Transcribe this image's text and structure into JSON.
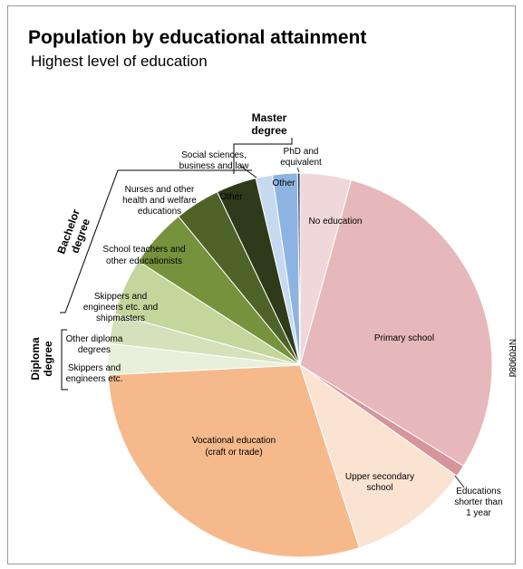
{
  "chart_data": {
    "type": "pie",
    "title": "Population by educational attainment",
    "subtitle": "Highest level of education",
    "code": "NR0908d",
    "start_angle_deg": 0,
    "direction": "clockwise",
    "slices": [
      {
        "label": "No education",
        "value": 4.3,
        "color": "#f0d8da"
      },
      {
        "label": "Primary school",
        "value": 29.5,
        "color": "#e6b8bb"
      },
      {
        "label": "Educations shorter than 1 year",
        "value": 1.0,
        "color": "#d6959b"
      },
      {
        "label": "Upper secondary school",
        "value": 10.2,
        "color": "#fbe3d2"
      },
      {
        "label": "Vocational education (craft or trade)",
        "value": 29.2,
        "color": "#f6b98c"
      },
      {
        "label": "Skippers and engineers etc.",
        "value": 2.6,
        "color": "#e8efda"
      },
      {
        "label": "Other diploma degrees",
        "value": 2.5,
        "color": "#d4e1bb"
      },
      {
        "label": "Skippers and engineers etc. and shipmasters",
        "value": 4.8,
        "color": "#c3d69b"
      },
      {
        "label": "School teachers and other educationists",
        "value": 5.0,
        "color": "#76923c"
      },
      {
        "label": "Nurses and other health and welfare educations",
        "value": 3.8,
        "color": "#4f6228"
      },
      {
        "label": "Other",
        "value": 3.4,
        "color": "#2e3a19"
      },
      {
        "label": "Social sciences, business and law",
        "value": 1.4,
        "color": "#c6d9f0"
      },
      {
        "label": "Other",
        "value": 2.1,
        "color": "#8db3e2"
      },
      {
        "label": "PhD and equivalent",
        "value": 0.2,
        "color": "#17375e"
      }
    ],
    "groups": [
      {
        "name": "Master degree"
      },
      {
        "name": "Bachelor degree"
      },
      {
        "name": "Diploma degree"
      }
    ]
  },
  "labels": {
    "no_education": "No education",
    "primary_school": "Primary school",
    "educations_short_1": "Educations",
    "educations_short_2": "shorter than",
    "educations_short_3": "1 year",
    "upper_secondary_1": "Upper secondary",
    "upper_secondary_2": "school",
    "vocational_1": "Vocational education",
    "vocational_2": "(craft or trade)",
    "skippers_diploma_1": "Skippers and",
    "skippers_diploma_2": "engineers etc.",
    "other_diploma_1": "Other diploma",
    "other_diploma_2": "degrees",
    "skippers_bachelor_1": "Skippers and",
    "skippers_bachelor_2": "engineers etc. and",
    "skippers_bachelor_3": "shipmasters",
    "teachers_1": "School teachers and",
    "teachers_2": "other educationists",
    "nurses_1": "Nurses and other",
    "nurses_2": "health and welfare",
    "nurses_3": "educations",
    "other_bachelor": "Other",
    "social_1": "Social sciences,",
    "social_2": "business and law",
    "other_master": "Other",
    "phd_1": "PhD and",
    "phd_2": "equivalent",
    "master_group_1": "Master",
    "master_group_2": "degree",
    "bachelor_group_1": "Bachelor",
    "bachelor_group_2": "degree",
    "diploma_group_1": "Diploma",
    "diploma_group_2": "degree"
  }
}
